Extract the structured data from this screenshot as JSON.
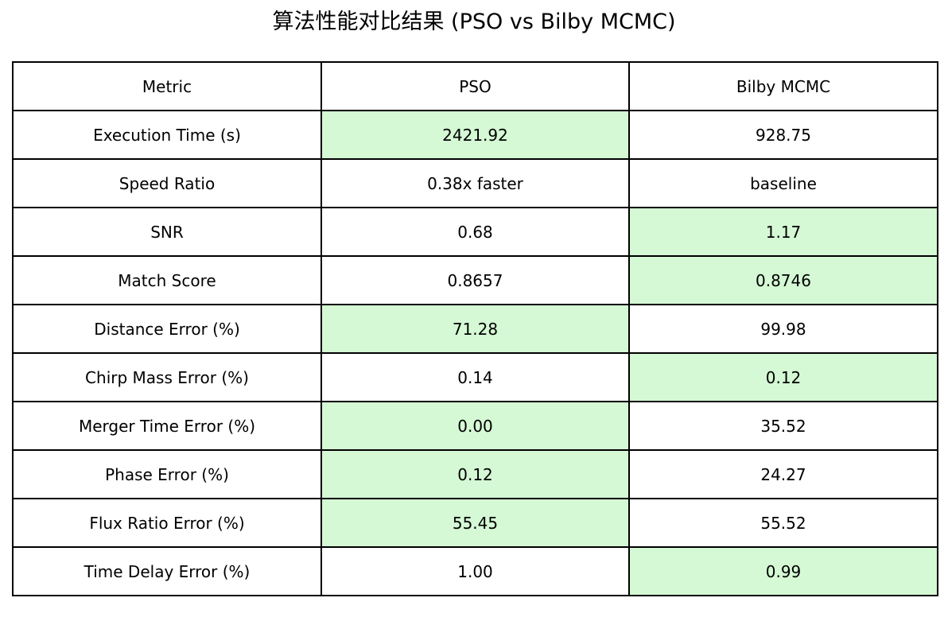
{
  "chart_data": {
    "type": "table",
    "title": "算法性能对比结果 (PSO vs Bilby MCMC)",
    "columns": [
      "Metric",
      "PSO",
      "Bilby MCMC"
    ],
    "rows": [
      {
        "metric": "Execution Time (s)",
        "pso": "2421.92",
        "bilby": "928.75",
        "highlight": "pso"
      },
      {
        "metric": "Speed Ratio",
        "pso": "0.38x faster",
        "bilby": "baseline",
        "highlight": ""
      },
      {
        "metric": "SNR",
        "pso": "0.68",
        "bilby": "1.17",
        "highlight": "bilby"
      },
      {
        "metric": "Match Score",
        "pso": "0.8657",
        "bilby": "0.8746",
        "highlight": "bilby"
      },
      {
        "metric": "Distance Error (%)",
        "pso": "71.28",
        "bilby": "99.98",
        "highlight": "pso"
      },
      {
        "metric": "Chirp Mass Error (%)",
        "pso": "0.14",
        "bilby": "0.12",
        "highlight": "bilby"
      },
      {
        "metric": "Merger Time Error (%)",
        "pso": "0.00",
        "bilby": "35.52",
        "highlight": "pso"
      },
      {
        "metric": "Phase Error (%)",
        "pso": "0.12",
        "bilby": "24.27",
        "highlight": "pso"
      },
      {
        "metric": "Flux Ratio Error (%)",
        "pso": "55.45",
        "bilby": "55.52",
        "highlight": "pso"
      },
      {
        "metric": "Time Delay Error (%)",
        "pso": "1.00",
        "bilby": "0.99",
        "highlight": "bilby"
      }
    ]
  },
  "colors": {
    "highlight": "#d5f8d5",
    "border": "#000000",
    "text": "#000000",
    "background": "#ffffff"
  }
}
